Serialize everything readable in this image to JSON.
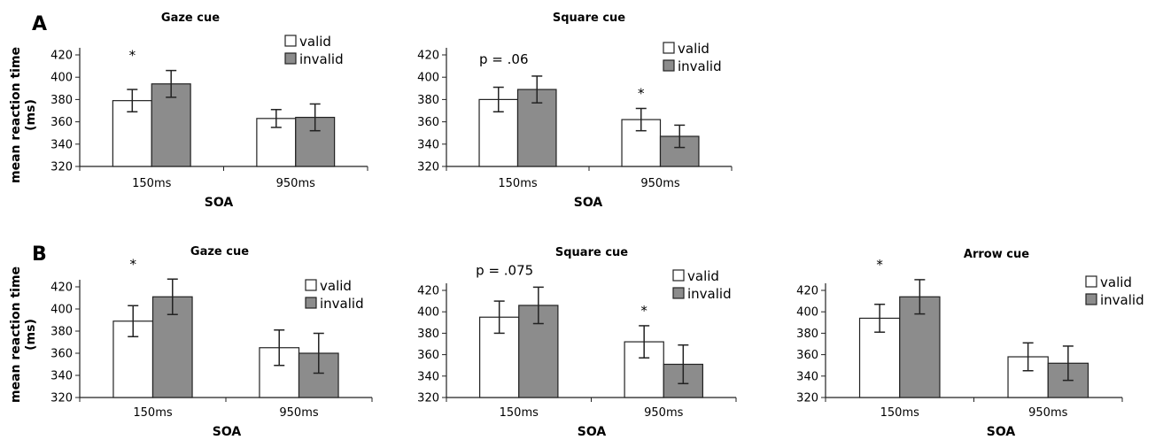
{
  "figure": {
    "ylabel_top": "mean reaction time",
    "ylabel_bottom": "(ms)",
    "panel_labels": [
      "A",
      "B"
    ]
  },
  "chart_data": [
    {
      "type": "bar",
      "panel": "A",
      "title": "Gaze cue",
      "categories": [
        "150ms",
        "950ms"
      ],
      "xlabel": "SOA",
      "ylim": [
        320,
        420
      ],
      "yticks": [
        320,
        340,
        360,
        380,
        400,
        420
      ],
      "series": [
        {
          "name": "valid",
          "color": "#ffffff",
          "values": [
            379,
            363
          ],
          "errors": [
            10,
            8
          ]
        },
        {
          "name": "invalid",
          "color": "#8c8c8c",
          "values": [
            394,
            364
          ],
          "errors": [
            12,
            12
          ]
        }
      ],
      "annotations": [
        {
          "text": "*",
          "category": 0
        }
      ],
      "legend": "top-right"
    },
    {
      "type": "bar",
      "panel": "A",
      "title": "Square cue",
      "categories": [
        "150ms",
        "950ms"
      ],
      "xlabel": "SOA",
      "ylim": [
        320,
        420
      ],
      "yticks": [
        320,
        340,
        360,
        380,
        400,
        420
      ],
      "series": [
        {
          "name": "valid",
          "color": "#ffffff",
          "values": [
            380,
            362
          ],
          "errors": [
            11,
            10
          ]
        },
        {
          "name": "invalid",
          "color": "#8c8c8c",
          "values": [
            389,
            347
          ],
          "errors": [
            12,
            10
          ]
        }
      ],
      "annotations": [
        {
          "text": "p = .06",
          "category": 0
        },
        {
          "text": "*",
          "category": 1
        }
      ],
      "legend": "top-right"
    },
    {
      "type": "bar",
      "panel": "B",
      "title": "Gaze cue",
      "categories": [
        "150ms",
        "950ms"
      ],
      "xlabel": "SOA",
      "ylim": [
        320,
        420
      ],
      "yticks": [
        320,
        340,
        360,
        380,
        400,
        420
      ],
      "series": [
        {
          "name": "valid",
          "color": "#ffffff",
          "values": [
            389,
            365
          ],
          "errors": [
            14,
            16
          ]
        },
        {
          "name": "invalid",
          "color": "#8c8c8c",
          "values": [
            411,
            360
          ],
          "errors": [
            16,
            18
          ]
        }
      ],
      "annotations": [
        {
          "text": "*",
          "category": 0
        }
      ],
      "legend": "top-right"
    },
    {
      "type": "bar",
      "panel": "B",
      "title": "Square cue",
      "categories": [
        "150ms",
        "950ms"
      ],
      "xlabel": "SOA",
      "ylim": [
        320,
        420
      ],
      "yticks": [
        320,
        340,
        360,
        380,
        400,
        420
      ],
      "series": [
        {
          "name": "valid",
          "color": "#ffffff",
          "values": [
            395,
            372
          ],
          "errors": [
            15,
            15
          ]
        },
        {
          "name": "invalid",
          "color": "#8c8c8c",
          "values": [
            406,
            351
          ],
          "errors": [
            17,
            18
          ]
        }
      ],
      "annotations": [
        {
          "text": "p = .075",
          "category": 0
        },
        {
          "text": "*",
          "category": 1
        }
      ],
      "legend": "top-right"
    },
    {
      "type": "bar",
      "panel": "B",
      "title": "Arrow cue",
      "categories": [
        "150ms",
        "950ms"
      ],
      "xlabel": "SOA",
      "ylim": [
        320,
        420
      ],
      "yticks": [
        320,
        340,
        360,
        380,
        400,
        420
      ],
      "series": [
        {
          "name": "valid",
          "color": "#ffffff",
          "values": [
            394,
            358
          ],
          "errors": [
            13,
            13
          ]
        },
        {
          "name": "invalid",
          "color": "#8c8c8c",
          "values": [
            414,
            352
          ],
          "errors": [
            16,
            16
          ]
        }
      ],
      "annotations": [
        {
          "text": "*",
          "category": 0
        }
      ],
      "legend": "top-right"
    }
  ]
}
